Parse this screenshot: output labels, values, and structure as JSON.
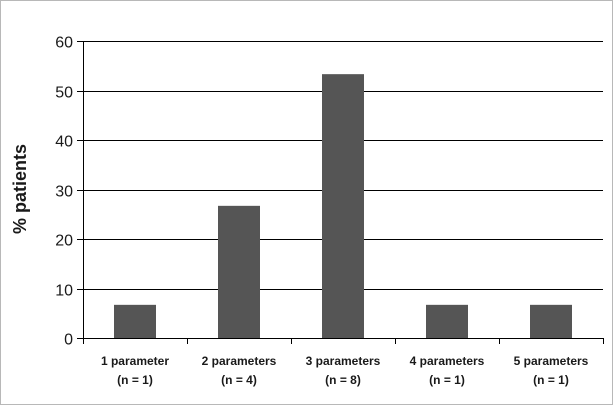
{
  "chart_data": {
    "type": "bar",
    "title": "",
    "xlabel": "",
    "ylabel": "% patients",
    "ylim": [
      0,
      60
    ],
    "yticks": [
      0,
      10,
      20,
      30,
      40,
      50,
      60
    ],
    "grid": true,
    "categories": [
      [
        "1 parameter",
        "(n = 1)"
      ],
      [
        "2 parameters",
        "(n = 4)"
      ],
      [
        "3 parameters",
        "(n = 8)"
      ],
      [
        "4 parameters",
        "(n = 1)"
      ],
      [
        "5 parameters",
        "(n = 1)"
      ]
    ],
    "values": [
      6.7,
      26.7,
      53.3,
      6.7,
      6.7
    ],
    "colors": {
      "bar": "#555555",
      "grid": "#000000",
      "axis": "#000000"
    }
  }
}
